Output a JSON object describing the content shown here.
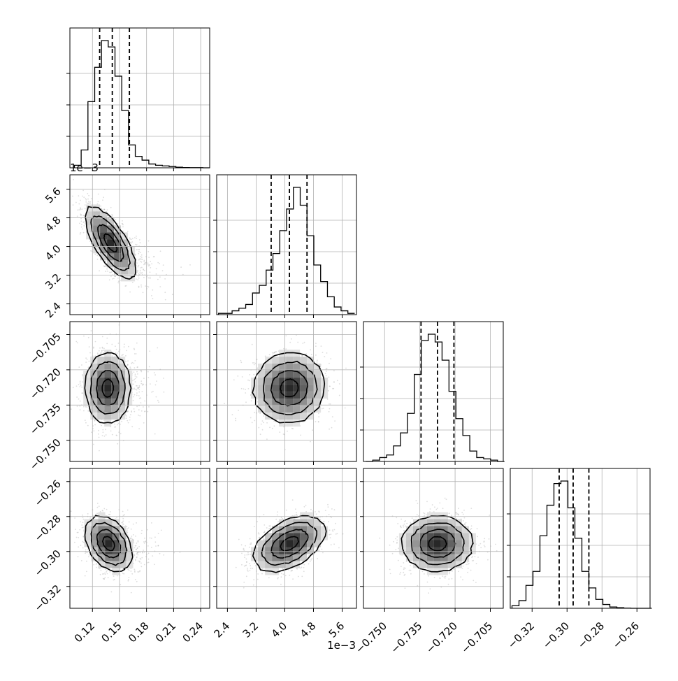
{
  "chart_data": {
    "type": "corner",
    "n_params": 4,
    "parameters": [
      {
        "index": 0,
        "ticks": [
          0.12,
          0.15,
          0.18,
          0.21,
          0.24
        ],
        "tick_labels": [
          "0.12",
          "0.15",
          "0.18",
          "0.21",
          "0.24"
        ],
        "range": [
          0.095,
          0.25
        ],
        "quantiles": [
          0.128,
          0.142,
          0.161
        ],
        "offset_text": ""
      },
      {
        "index": 1,
        "ticks": [
          2.4,
          3.2,
          4.0,
          4.8,
          5.6
        ],
        "tick_labels": [
          "2.4",
          "3.2",
          "4.0",
          "4.8",
          "5.6"
        ],
        "range": [
          2.1,
          6.0
        ],
        "quantiles": [
          3.62,
          4.13,
          4.62
        ],
        "offset_text": "1e−3"
      },
      {
        "index": 2,
        "ticks": [
          -0.75,
          -0.735,
          -0.72,
          -0.705
        ],
        "tick_labels": [
          "−0.750",
          "−0.735",
          "−0.720",
          "−0.705"
        ],
        "range": [
          -0.759,
          -0.6995
        ],
        "quantiles": [
          -0.7345,
          -0.7275,
          -0.7205
        ],
        "offset_text": ""
      },
      {
        "index": 3,
        "ticks": [
          -0.32,
          -0.3,
          -0.28,
          -0.26
        ],
        "tick_labels": [
          "−0.32",
          "−0.30",
          "−0.28",
          "−0.26"
        ],
        "range": [
          -0.3325,
          -0.2525
        ],
        "quantiles": [
          -0.3045,
          -0.2965,
          -0.2875
        ],
        "offset_text": ""
      }
    ],
    "histograms": [
      {
        "param": 0,
        "bin_start": 0.1,
        "bin_width": 0.0075,
        "heights": [
          0.02,
          0.14,
          0.52,
          0.79,
          1.0,
          0.95,
          0.72,
          0.45,
          0.18,
          0.09,
          0.06,
          0.03,
          0.02,
          0.015,
          0.01,
          0.005,
          0.002,
          0.001,
          0.001,
          0.0
        ]
      },
      {
        "param": 1,
        "bin_start": 2.15,
        "bin_width": 0.19,
        "heights": [
          0.01,
          0.01,
          0.03,
          0.05,
          0.08,
          0.17,
          0.23,
          0.35,
          0.48,
          0.66,
          0.83,
          1.0,
          0.86,
          0.62,
          0.39,
          0.26,
          0.14,
          0.06,
          0.03,
          0.01
        ]
      },
      {
        "param": 2,
        "bin_start": -0.758,
        "bin_width": 0.00295,
        "heights": [
          0.0,
          0.01,
          0.03,
          0.05,
          0.12,
          0.22,
          0.37,
          0.67,
          0.93,
          0.98,
          0.92,
          0.78,
          0.54,
          0.33,
          0.2,
          0.08,
          0.03,
          0.02,
          0.01,
          0.0
        ]
      },
      {
        "param": 3,
        "bin_start": -0.3315,
        "bin_width": 0.004,
        "heights": [
          0.02,
          0.06,
          0.18,
          0.29,
          0.57,
          0.81,
          0.98,
          1.0,
          0.79,
          0.55,
          0.29,
          0.16,
          0.07,
          0.03,
          0.01,
          0.005,
          0.001,
          0.0,
          0.0,
          0.0
        ]
      }
    ],
    "pairs": [
      {
        "row": 1,
        "col": 0,
        "mean_x": 0.14,
        "mean_y": 4.1,
        "sd_x": 0.014,
        "sd_y": 0.5,
        "corr": -0.7
      },
      {
        "row": 2,
        "col": 0,
        "mean_x": 0.137,
        "mean_y": -0.7278,
        "sd_x": 0.0125,
        "sd_y": 0.0075,
        "corr": 0.0
      },
      {
        "row": 2,
        "col": 1,
        "mean_x": 4.13,
        "mean_y": -0.7278,
        "sd_x": 0.5,
        "sd_y": 0.0075,
        "corr": 0.05
      },
      {
        "row": 3,
        "col": 0,
        "mean_x": 0.138,
        "mean_y": -0.2955,
        "sd_x": 0.013,
        "sd_y": 0.008,
        "corr": -0.35
      },
      {
        "row": 3,
        "col": 1,
        "mean_x": 4.13,
        "mean_y": -0.2955,
        "sd_x": 0.5,
        "sd_y": 0.008,
        "corr": 0.45
      },
      {
        "row": 3,
        "col": 2,
        "mean_x": -0.7275,
        "mean_y": -0.2955,
        "sd_x": 0.0075,
        "sd_y": 0.008,
        "corr": 0.0
      }
    ],
    "hist_line_color": "#000000",
    "contour_color": "#000000",
    "scatter_color": "#9e9e9e",
    "grid_color": "#b0b0b0",
    "grid": true,
    "xlabel": "",
    "ylabel": "",
    "title": ""
  }
}
